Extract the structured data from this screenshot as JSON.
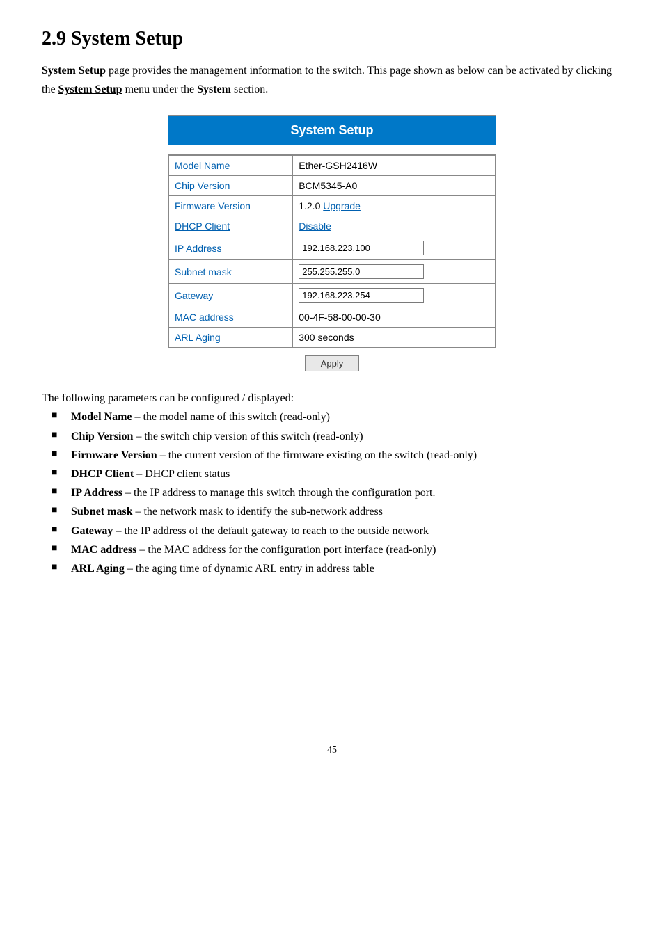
{
  "heading": "2.9  System Setup",
  "intro_parts": {
    "a": "System Setup",
    "b": " page provides the management information to the switch. This page shown as below can be activated by clicking the ",
    "c": "System Setup",
    "d": " menu under the ",
    "e": "System",
    "f": " section."
  },
  "panel": {
    "title": "System Setup",
    "rows": {
      "model_name_label": "Model Name",
      "model_name_value": "Ether-GSH2416W",
      "chip_version_label": "Chip Version",
      "chip_version_value": "BCM5345-A0",
      "firmware_version_label": "Firmware Version",
      "firmware_version_prefix": "1.2.0   ",
      "firmware_version_link": "Upgrade",
      "dhcp_client_label": "DHCP Client",
      "dhcp_client_link": "Disable",
      "ip_address_label": "IP Address",
      "ip_address_value": "192.168.223.100",
      "subnet_mask_label": "Subnet mask",
      "subnet_mask_value": "255.255.255.0",
      "gateway_label": "Gateway",
      "gateway_value": "192.168.223.254",
      "mac_address_label": "MAC address",
      "mac_address_value": "00-4F-58-00-00-30",
      "arl_aging_label": "ARL Aging",
      "arl_aging_value": "300 seconds"
    },
    "apply_label": "Apply"
  },
  "listhead": "The following parameters can be configured / displayed:",
  "params": [
    {
      "name": "Model Name",
      "desc": " – the model name of this switch (read-only)"
    },
    {
      "name": "Chip Version",
      "desc": " – the switch chip version of this switch (read-only)"
    },
    {
      "name": "Firmware Version",
      "desc": " – the current version of the firmware existing on the switch (read-only)"
    },
    {
      "name": "DHCP Client",
      "desc": " – DHCP client status"
    },
    {
      "name": "IP Address",
      "desc": " – the IP address to manage this switch through the configuration port."
    },
    {
      "name": "Subnet mask",
      "desc": " – the network mask to identify the sub-network address"
    },
    {
      "name": "Gateway",
      "desc": " – the IP address of the default gateway to reach to the outside network"
    },
    {
      "name": "MAC address",
      "desc": " – the MAC address for the configuration port interface (read-only)"
    },
    {
      "name": "ARL Aging",
      "desc": " – the aging time of dynamic ARL entry in address table"
    }
  ],
  "pagenum": "45"
}
